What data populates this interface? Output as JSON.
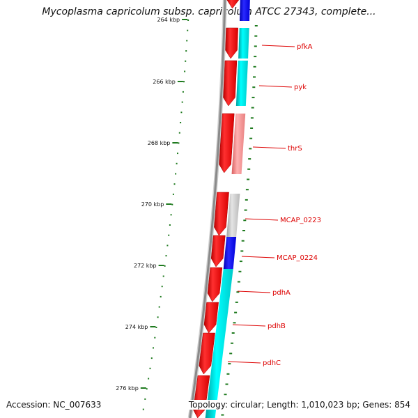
{
  "title": "Mycoplasma capricolum subsp. capricolum ATCC 27343, complete...",
  "accession": "Accession: NC_007633",
  "summary": "Topology: circular; Length: 1,010,023 bp; Genes: 854",
  "colors": {
    "backbone": "#8a8a8a",
    "tick": "#1e7a1e",
    "cds": "#ff0000",
    "gene_label": "#dd0000",
    "cyan": "#00d8d8",
    "pink": "#f08080",
    "gray": "#c0c0c0",
    "blue": "#0000ff"
  },
  "scale_labels": [
    {
      "text": "264 kbp"
    },
    {
      "text": "266 kbp"
    },
    {
      "text": "268 kbp"
    },
    {
      "text": "270 kbp"
    },
    {
      "text": "272 kbp"
    },
    {
      "text": "274 kbp"
    },
    {
      "text": "276 kbp"
    }
  ],
  "genes": [
    {
      "label": "pfkA"
    },
    {
      "label": "pyk"
    },
    {
      "label": "thrS"
    },
    {
      "label": "MCAP_0223"
    },
    {
      "label": "MCAP_0224"
    },
    {
      "label": "pdhA"
    },
    {
      "label": "pdhB"
    },
    {
      "label": "pdhC"
    }
  ]
}
